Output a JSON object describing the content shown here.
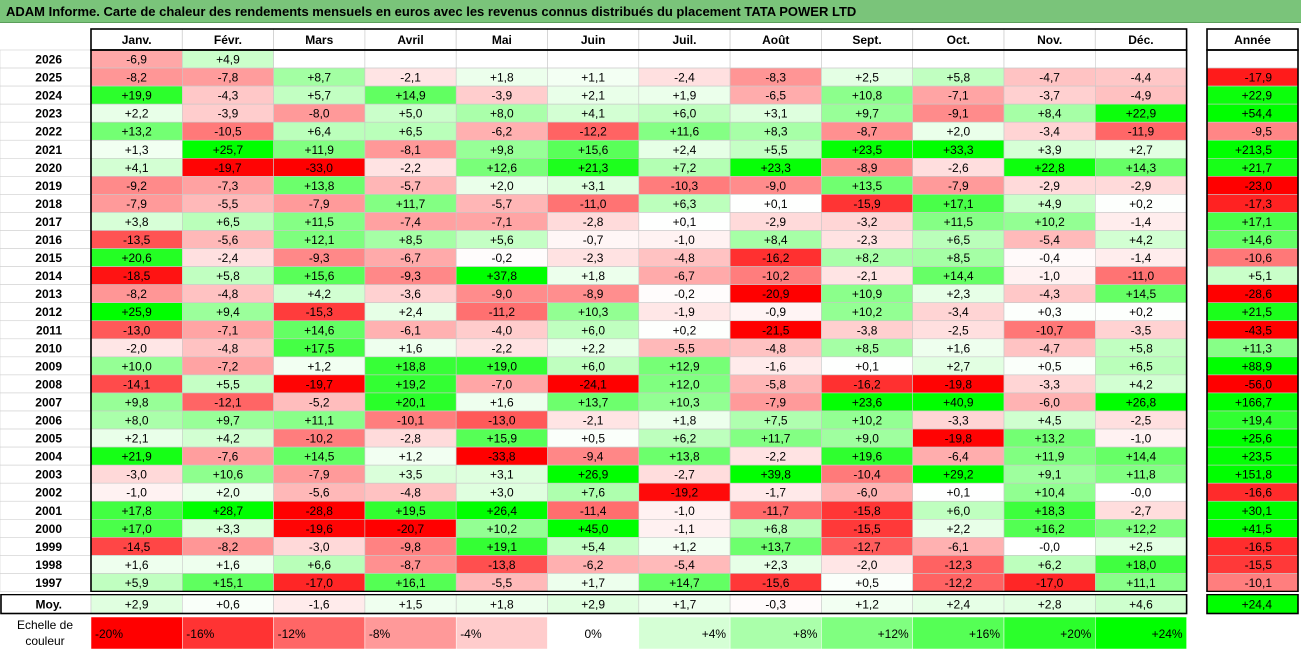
{
  "title": "ADAM Informe. Carte de chaleur des rendements mensuels en euros avec les revenus connus distribués du placement TATA POWER LTD",
  "year_header": "Année",
  "avg_label": "Moy.",
  "scale_label_line1": "Echelle de",
  "scale_label_line2": "couleur",
  "chart_data": {
    "type": "heatmap",
    "months": [
      "Janv.",
      "Févr.",
      "Mars",
      "Avril",
      "Mai",
      "Juin",
      "Juil.",
      "Août",
      "Sept.",
      "Oct.",
      "Nov.",
      "Déc."
    ],
    "rows": [
      {
        "year": "2026",
        "values": [
          "-6,9",
          "+4,9",
          "",
          "",
          "",
          "",
          "",
          "",
          "",
          "",
          "",
          ""
        ],
        "annual": ""
      },
      {
        "year": "2025",
        "values": [
          "-8,2",
          "-7,8",
          "+8,7",
          "-2,1",
          "+1,8",
          "+1,1",
          "-2,4",
          "-8,3",
          "+2,5",
          "+5,8",
          "-4,7",
          "-4,4"
        ],
        "annual": "-17,9"
      },
      {
        "year": "2024",
        "values": [
          "+19,9",
          "-4,3",
          "+5,7",
          "+14,9",
          "-3,9",
          "+2,1",
          "+1,9",
          "-6,5",
          "+10,8",
          "-7,1",
          "-3,7",
          "-4,9"
        ],
        "annual": "+22,9"
      },
      {
        "year": "2023",
        "values": [
          "+2,2",
          "-3,9",
          "-8,0",
          "+5,0",
          "+8,0",
          "+4,1",
          "+6,0",
          "+3,1",
          "+9,7",
          "-9,1",
          "+8,4",
          "+22,9"
        ],
        "annual": "+54,4"
      },
      {
        "year": "2022",
        "values": [
          "+13,2",
          "-10,5",
          "+6,4",
          "+6,5",
          "-6,2",
          "-12,2",
          "+11,6",
          "+8,3",
          "-8,7",
          "+2,0",
          "-3,4",
          "-11,9"
        ],
        "annual": "-9,5"
      },
      {
        "year": "2021",
        "values": [
          "+1,3",
          "+25,7",
          "+11,9",
          "-8,1",
          "+9,8",
          "+15,6",
          "+2,4",
          "+5,5",
          "+23,5",
          "+33,3",
          "+3,9",
          "+2,7"
        ],
        "annual": "+213,5"
      },
      {
        "year": "2020",
        "values": [
          "+4,1",
          "-19,7",
          "-33,0",
          "-2,2",
          "+12,6",
          "+21,3",
          "+7,2",
          "+23,3",
          "-8,9",
          "-2,6",
          "+22,8",
          "+14,3"
        ],
        "annual": "+21,7"
      },
      {
        "year": "2019",
        "values": [
          "-9,2",
          "-7,3",
          "+13,8",
          "-5,7",
          "+2,0",
          "+3,1",
          "-10,3",
          "-9,0",
          "+13,5",
          "-7,9",
          "-2,9",
          "-2,9"
        ],
        "annual": "-23,0"
      },
      {
        "year": "2018",
        "values": [
          "-7,9",
          "-5,5",
          "-7,9",
          "+11,7",
          "-5,7",
          "-11,0",
          "+6,3",
          "+0,1",
          "-15,9",
          "+17,1",
          "+4,9",
          "+0,2"
        ],
        "annual": "-17,3"
      },
      {
        "year": "2017",
        "values": [
          "+3,8",
          "+6,5",
          "+11,5",
          "-7,4",
          "-7,1",
          "-2,8",
          "+0,1",
          "-2,9",
          "-3,2",
          "+11,5",
          "+10,2",
          "-1,4"
        ],
        "annual": "+17,1"
      },
      {
        "year": "2016",
        "values": [
          "-13,5",
          "-5,6",
          "+12,1",
          "+8,5",
          "+5,6",
          "-0,7",
          "-1,0",
          "+8,4",
          "-2,3",
          "+6,5",
          "-5,4",
          "+4,2"
        ],
        "annual": "+14,6"
      },
      {
        "year": "2015",
        "values": [
          "+20,6",
          "-2,4",
          "-9,3",
          "-6,7",
          "-0,2",
          "-2,3",
          "-4,8",
          "-16,2",
          "+8,2",
          "+8,5",
          "-0,4",
          "-1,4"
        ],
        "annual": "-10,6"
      },
      {
        "year": "2014",
        "values": [
          "-18,5",
          "+5,8",
          "+15,6",
          "-9,3",
          "+37,8",
          "+1,8",
          "-6,7",
          "-10,2",
          "-2,1",
          "+14,4",
          "-1,0",
          "-11,0"
        ],
        "annual": "+5,1"
      },
      {
        "year": "2013",
        "values": [
          "-8,2",
          "-4,8",
          "+4,2",
          "-3,6",
          "-9,0",
          "-8,9",
          "-0,2",
          "-20,9",
          "+10,9",
          "+2,3",
          "-4,3",
          "+14,5"
        ],
        "annual": "-28,6"
      },
      {
        "year": "2012",
        "values": [
          "+25,9",
          "+9,4",
          "-15,3",
          "+2,4",
          "-11,2",
          "+10,3",
          "-1,9",
          "-0,9",
          "+10,2",
          "-3,4",
          "+0,3",
          "+0,2"
        ],
        "annual": "+21,5"
      },
      {
        "year": "2011",
        "values": [
          "-13,0",
          "-7,1",
          "+14,6",
          "-6,1",
          "-4,0",
          "+6,0",
          "+0,2",
          "-21,5",
          "-3,8",
          "-2,5",
          "-10,7",
          "-3,5"
        ],
        "annual": "-43,5"
      },
      {
        "year": "2010",
        "values": [
          "-2,0",
          "-4,8",
          "+17,5",
          "+1,6",
          "-2,2",
          "+2,2",
          "-5,5",
          "-4,8",
          "+8,5",
          "+1,6",
          "-4,7",
          "+5,8"
        ],
        "annual": "+11,3"
      },
      {
        "year": "2009",
        "values": [
          "+10,0",
          "-7,2",
          "+1,2",
          "+18,8",
          "+19,0",
          "+6,0",
          "+12,9",
          "-1,6",
          "+0,1",
          "+2,7",
          "+0,5",
          "+6,5"
        ],
        "annual": "+88,9"
      },
      {
        "year": "2008",
        "values": [
          "-14,1",
          "+5,5",
          "-19,7",
          "+19,2",
          "-7,0",
          "-24,1",
          "+12,0",
          "-5,8",
          "-16,2",
          "-19,8",
          "-3,3",
          "+4,2"
        ],
        "annual": "-56,0"
      },
      {
        "year": "2007",
        "values": [
          "+9,8",
          "-12,1",
          "-5,2",
          "+20,1",
          "+1,6",
          "+13,7",
          "+10,3",
          "-7,9",
          "+23,6",
          "+40,9",
          "-6,0",
          "+26,8"
        ],
        "annual": "+166,7"
      },
      {
        "year": "2006",
        "values": [
          "+8,0",
          "+9,7",
          "+11,1",
          "-10,1",
          "-13,0",
          "-2,1",
          "+1,8",
          "+7,5",
          "+10,2",
          "-3,3",
          "+4,5",
          "-2,5"
        ],
        "annual": "+19,4"
      },
      {
        "year": "2005",
        "values": [
          "+2,1",
          "+4,2",
          "-10,2",
          "-2,8",
          "+15,9",
          "+0,5",
          "+6,2",
          "+11,7",
          "+9,0",
          "-19,8",
          "+13,2",
          "-1,0"
        ],
        "annual": "+25,6"
      },
      {
        "year": "2004",
        "values": [
          "+21,9",
          "-7,6",
          "+14,5",
          "+1,2",
          "-33,8",
          "-9,4",
          "+13,8",
          "-2,2",
          "+19,6",
          "-6,4",
          "+11,9",
          "+14,4"
        ],
        "annual": "+23,5"
      },
      {
        "year": "2003",
        "values": [
          "-3,0",
          "+10,6",
          "-7,9",
          "+3,5",
          "+3,1",
          "+26,9",
          "-2,7",
          "+39,8",
          "-10,4",
          "+29,2",
          "+9,1",
          "+11,8"
        ],
        "annual": "+151,8"
      },
      {
        "year": "2002",
        "values": [
          "-1,0",
          "+2,0",
          "-5,6",
          "-4,8",
          "+3,0",
          "+7,6",
          "-19,2",
          "-1,7",
          "-6,0",
          "+0,1",
          "+10,4",
          "-0,0"
        ],
        "annual": "-16,6"
      },
      {
        "year": "2001",
        "values": [
          "+17,8",
          "+28,7",
          "-28,8",
          "+19,5",
          "+26,4",
          "-11,4",
          "-1,0",
          "-11,7",
          "-15,8",
          "+6,0",
          "+18,3",
          "-2,7"
        ],
        "annual": "+30,1"
      },
      {
        "year": "2000",
        "values": [
          "+17,0",
          "+3,3",
          "-19,6",
          "-20,7",
          "+10,2",
          "+45,0",
          "-1,1",
          "+6,8",
          "-15,5",
          "+2,2",
          "+16,2",
          "+12,2"
        ],
        "annual": "+41,5"
      },
      {
        "year": "1999",
        "values": [
          "-14,5",
          "-8,2",
          "-3,0",
          "-9,8",
          "+19,1",
          "+5,4",
          "+1,2",
          "+13,7",
          "-12,7",
          "-6,1",
          "-0,0",
          "+2,5"
        ],
        "annual": "-16,5"
      },
      {
        "year": "1998",
        "values": [
          "+1,6",
          "+1,6",
          "+6,6",
          "-8,7",
          "-13,8",
          "-6,2",
          "-5,4",
          "+2,3",
          "-2,0",
          "-12,3",
          "+6,2",
          "+18,0"
        ],
        "annual": "-15,5"
      },
      {
        "year": "1997",
        "values": [
          "+5,9",
          "+15,1",
          "-17,0",
          "+16,1",
          "-5,5",
          "+1,7",
          "+14,7",
          "-15,6",
          "+0,5",
          "-12,2",
          "-17,0",
          "+11,1"
        ],
        "annual": "-10,1"
      }
    ],
    "averages": [
      "+2,9",
      "+0,6",
      "-1,6",
      "+1,5",
      "+1,8",
      "+2,9",
      "+1,7",
      "-0,3",
      "+1,2",
      "+2,4",
      "+2,8",
      "+4,6"
    ],
    "average_annual": "+24,4",
    "scale": [
      "-20%",
      "-16%",
      "-12%",
      "-8%",
      "-4%",
      "0%",
      "+4%",
      "+8%",
      "+12%",
      "+16%",
      "+20%",
      "+24%"
    ],
    "scale_values": [
      -20,
      -16,
      -12,
      -8,
      -4,
      0,
      4,
      8,
      12,
      16,
      20,
      24
    ],
    "colors": {
      "negative_max": "#ff0000",
      "neutral": "#ffffff",
      "positive_max": "#00ff00"
    }
  }
}
